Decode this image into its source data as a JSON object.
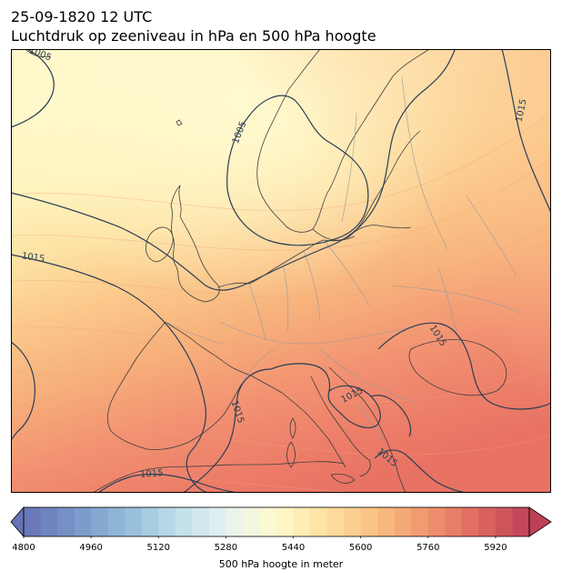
{
  "title": {
    "line1": "25-09-1820 12 UTC",
    "line2": "Luchtdruk op zeeniveau in hPa en 500 hPa hoogte"
  },
  "map": {
    "projection": "europe-north-atlantic",
    "filled_field": "500 hPa geopotential height (m)",
    "contour_field": "mean sea level pressure (hPa)",
    "contour_labels": [
      {
        "value": "1005",
        "location": "top-left corner"
      },
      {
        "value": "1005",
        "location": "southern Norway"
      },
      {
        "value": "1015",
        "location": "northern Finland"
      },
      {
        "value": "1015",
        "location": "west of Ireland"
      },
      {
        "value": "1015",
        "location": "Ukraine"
      },
      {
        "value": "1015",
        "location": "Adriatic"
      },
      {
        "value": "1015",
        "location": "Corsica"
      },
      {
        "value": "1015",
        "location": "Greece"
      },
      {
        "value": "1015",
        "location": "Algeria coast"
      }
    ],
    "colors": {
      "coast": "#3d3d3d",
      "borders": "#9a9a9a",
      "contours": "#2b3d55"
    }
  },
  "colorbar": {
    "label": "500 hPa hoogte in meter",
    "ticks": [
      "4800",
      "4960",
      "5120",
      "5280",
      "5440",
      "5600",
      "5760",
      "5920"
    ],
    "min": 4800,
    "max": 6000,
    "step": 40,
    "extend": "both",
    "colormap": "RdYlBu_r (pastel)"
  }
}
